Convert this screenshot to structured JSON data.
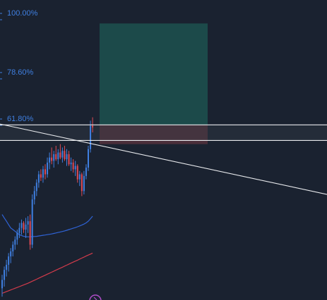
{
  "colors": {
    "background": "#1a2230",
    "fib_text": "#3f7fe0",
    "fib_tick": "#3f7fe0",
    "candle_up": "#3f7fe0",
    "candle_down": "#e04b55",
    "ma_fast": "#2f63d6",
    "ma_slow": "#d23b4b",
    "horizontal_line": "#e8eaed",
    "trend_line": "#e8eaed",
    "target_zone": "#1c4a4a",
    "stop_zone": "#4a2e3a",
    "gray_band": "#3a3f4a",
    "marker": "#b04ec9"
  },
  "chart_data": {
    "type": "candlestick",
    "title": "",
    "xlabel": "",
    "ylabel": "",
    "ylim": [
      -45,
      134
    ],
    "grid": false,
    "legend": "none",
    "fib_levels": [
      {
        "label": "100.00%",
        "value": 100.0
      },
      {
        "label": "78.60%",
        "value": 78.6
      },
      {
        "label": "61.80%",
        "value": 61.8
      }
    ],
    "candles": [
      {
        "o": -38,
        "h": -30,
        "l": -43,
        "c": -33
      },
      {
        "o": -33,
        "h": -25,
        "l": -37,
        "c": -27
      },
      {
        "o": -27,
        "h": -21,
        "l": -31,
        "c": -24
      },
      {
        "o": -24,
        "h": -17,
        "l": -28,
        "c": -19
      },
      {
        "o": -19,
        "h": -14,
        "l": -23,
        "c": -16
      },
      {
        "o": -16,
        "h": -10,
        "l": -19,
        "c": -12
      },
      {
        "o": -12,
        "h": -7,
        "l": -15,
        "c": -9
      },
      {
        "o": -9,
        "h": -3,
        "l": -12,
        "c": -5
      },
      {
        "o": -5,
        "h": 1,
        "l": -8,
        "c": -2
      },
      {
        "o": -2,
        "h": 3,
        "l": -6,
        "c": 1
      },
      {
        "o": 1,
        "h": 2,
        "l": -5,
        "c": -3
      },
      {
        "o": -3,
        "h": 4,
        "l": -8,
        "c": 0
      },
      {
        "o": 0,
        "h": 5,
        "l": -5,
        "c": 2
      },
      {
        "o": 2,
        "h": 6,
        "l": -15,
        "c": -12
      },
      {
        "o": -12,
        "h": 18,
        "l": -14,
        "c": 15
      },
      {
        "o": 15,
        "h": 23,
        "l": 12,
        "c": 20
      },
      {
        "o": 20,
        "h": 27,
        "l": 17,
        "c": 25
      },
      {
        "o": 25,
        "h": 32,
        "l": 22,
        "c": 30
      },
      {
        "o": 30,
        "h": 33,
        "l": 26,
        "c": 28
      },
      {
        "o": 28,
        "h": 35,
        "l": 25,
        "c": 33
      },
      {
        "o": 33,
        "h": 36,
        "l": 27,
        "c": 30
      },
      {
        "o": 30,
        "h": 40,
        "l": 28,
        "c": 37
      },
      {
        "o": 37,
        "h": 43,
        "l": 33,
        "c": 40
      },
      {
        "o": 40,
        "h": 46,
        "l": 36,
        "c": 38
      },
      {
        "o": 38,
        "h": 44,
        "l": 34,
        "c": 42
      },
      {
        "o": 42,
        "h": 47,
        "l": 38,
        "c": 39
      },
      {
        "o": 39,
        "h": 45,
        "l": 36,
        "c": 43
      },
      {
        "o": 43,
        "h": 48,
        "l": 39,
        "c": 40
      },
      {
        "o": 40,
        "h": 46,
        "l": 37,
        "c": 44
      },
      {
        "o": 44,
        "h": 47,
        "l": 38,
        "c": 39
      },
      {
        "o": 39,
        "h": 45,
        "l": 35,
        "c": 42
      },
      {
        "o": 42,
        "h": 44,
        "l": 35,
        "c": 36
      },
      {
        "o": 36,
        "h": 40,
        "l": 32,
        "c": 37
      },
      {
        "o": 37,
        "h": 39,
        "l": 31,
        "c": 33
      },
      {
        "o": 33,
        "h": 38,
        "l": 29,
        "c": 35
      },
      {
        "o": 35,
        "h": 36,
        "l": 25,
        "c": 27
      },
      {
        "o": 27,
        "h": 32,
        "l": 23,
        "c": 30
      },
      {
        "o": 30,
        "h": 31,
        "l": 17,
        "c": 20
      },
      {
        "o": 20,
        "h": 32,
        "l": 18,
        "c": 29
      },
      {
        "o": 29,
        "h": 36,
        "l": 27,
        "c": 34
      },
      {
        "o": 34,
        "h": 47,
        "l": 32,
        "c": 45
      },
      {
        "o": 45,
        "h": 62,
        "l": 43,
        "c": 59
      },
      {
        "o": 59,
        "h": 64,
        "l": 55,
        "c": 58
      }
    ],
    "moving_averages": [
      {
        "role": "fast",
        "values": [
          6,
          4,
          2,
          0,
          -2,
          -3,
          -4,
          -5,
          -6,
          -6.5,
          -7,
          -7.2,
          -7.3,
          -7.3,
          -7.2,
          -7.1,
          -7,
          -6.8,
          -6.6,
          -6.4,
          -6.2,
          -6,
          -5.8,
          -5.6,
          -5.3,
          -5,
          -4.7,
          -4.4,
          -4.1,
          -3.8,
          -3.4,
          -3,
          -2.6,
          -2.2,
          -1.8,
          -1.3,
          -0.8,
          -0.3,
          0.3,
          1,
          2,
          3.5,
          5
        ]
      },
      {
        "role": "slow",
        "values": [
          -41,
          -40.5,
          -40,
          -39.5,
          -39,
          -38.5,
          -38,
          -37.5,
          -37,
          -36.5,
          -36,
          -35.5,
          -35,
          -34.4,
          -33.8,
          -33.2,
          -32.6,
          -32,
          -31.4,
          -30.8,
          -30.2,
          -29.6,
          -29,
          -28.4,
          -27.8,
          -27.2,
          -26.6,
          -26,
          -25.4,
          -24.8,
          -24.2,
          -23.6,
          -23,
          -22.4,
          -21.8,
          -21.2,
          -20.6,
          -20,
          -19.4,
          -18.8,
          -18.2,
          -17.6,
          -17
        ]
      }
    ],
    "position": {
      "entry": 59.5,
      "stop": 48,
      "target": 120
    },
    "horizontal_lines": [
      59.5,
      50.2
    ],
    "trend_line": {
      "start": 60,
      "end": 18
    }
  }
}
